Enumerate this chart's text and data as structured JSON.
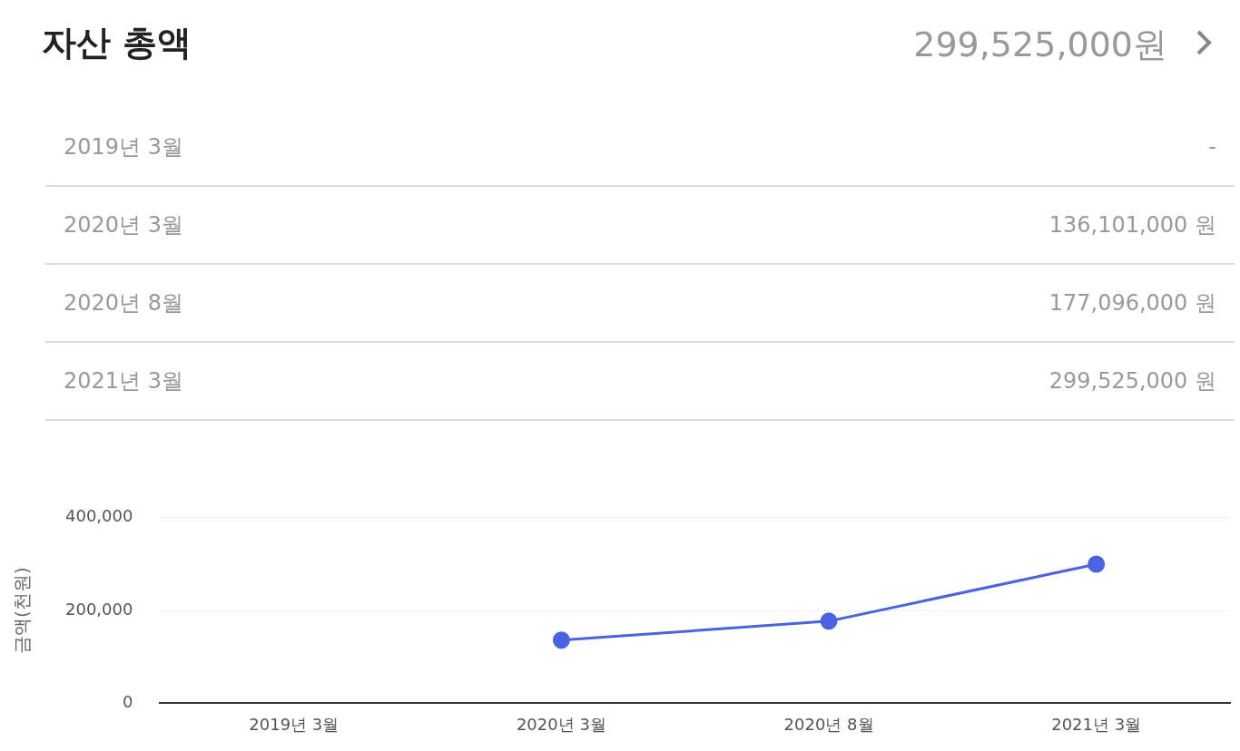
{
  "chart_data": [
    {
      "type": "other",
      "title": "자산 총액",
      "subtitle": "299,525,000원",
      "annotations": [
        "2019년 3월",
        "-",
        "2020년 3월",
        "136,101,000 원",
        "2020년 8월",
        "177,096,000 원",
        "2021년 3월",
        "299,525,000 원"
      ]
    },
    {
      "type": "line",
      "ylabel": "금액(천원)",
      "categories": [
        "2019년 3월",
        "2020년 3월",
        "2020년 8월",
        "2021년 3월"
      ],
      "series": [
        {
          "color": "#4a63e0",
          "values": [
            null,
            136000,
            177000,
            300000
          ]
        }
      ],
      "ylim": [
        0,
        400000
      ],
      "yticks": [
        {
          "value": 0,
          "label": "0"
        },
        {
          "value": 200000,
          "label": "200,000"
        },
        {
          "value": 400000,
          "label": "400,000"
        }
      ],
      "grid": "y",
      "legend": false,
      "marker": "circle",
      "line_style": "solid"
    }
  ]
}
